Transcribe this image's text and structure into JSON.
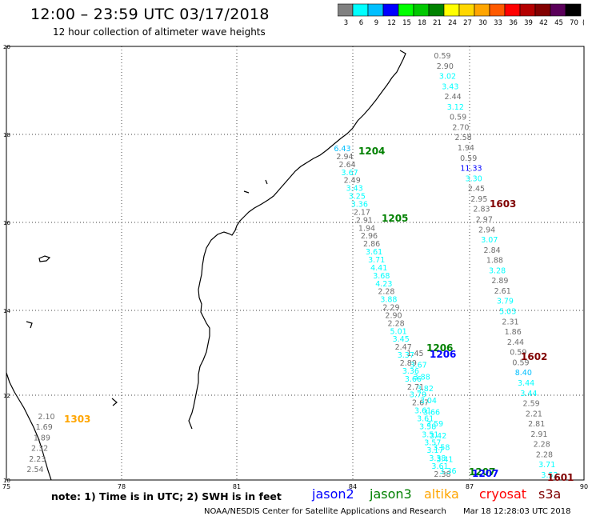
{
  "header": {
    "title": "12:00 – 23:59 UTC 03/17/2018",
    "subtitle": "12 hour collection of altimeter wave heights"
  },
  "color_scale": {
    "unit": "(ft)",
    "bins": [
      {
        "label": "3",
        "color": "#808080"
      },
      {
        "label": "6",
        "color": "#00ffff"
      },
      {
        "label": "9",
        "color": "#00bfff"
      },
      {
        "label": "12",
        "color": "#0000ff"
      },
      {
        "label": "15",
        "color": "#00ff00"
      },
      {
        "label": "18",
        "color": "#00c800"
      },
      {
        "label": "21",
        "color": "#008200"
      },
      {
        "label": "24",
        "color": "#ffff00"
      },
      {
        "label": "27",
        "color": "#ffd700"
      },
      {
        "label": "30",
        "color": "#ffa500"
      },
      {
        "label": "33",
        "color": "#ff5a00"
      },
      {
        "label": "36",
        "color": "#ff0000"
      },
      {
        "label": "39",
        "color": "#b40000"
      },
      {
        "label": "42",
        "color": "#820000"
      },
      {
        "label": "45",
        "color": "#5a005a"
      },
      {
        "label": "70",
        "color": "#000000"
      }
    ]
  },
  "map": {
    "lat_ticks": [
      "20",
      "18",
      "16",
      "14",
      "12",
      "10"
    ],
    "lon_ticks": [
      "75",
      "78",
      "81",
      "84",
      "87",
      "90"
    ],
    "pass_labels": [
      {
        "text": "1204",
        "color": "#008000"
      },
      {
        "text": "1205",
        "color": "#008000"
      },
      {
        "text": "1206",
        "color": "#008000"
      },
      {
        "text": "1206",
        "color": "#0000ff"
      },
      {
        "text": "1603",
        "color": "#800000"
      },
      {
        "text": "1602",
        "color": "#800000"
      },
      {
        "text": "1207",
        "color": "#008000"
      },
      {
        "text": "1207",
        "color": "#0000ff"
      },
      {
        "text": "1601",
        "color": "#800000"
      },
      {
        "text": "1303",
        "color": "#ffa500"
      }
    ],
    "tracks": [
      {
        "id": "s3a-east",
        "values": [
          "0.59",
          "2.90",
          "3.02",
          "3.43",
          "2.44",
          "3.12",
          "0.59",
          "2.70",
          "2.58",
          "1.94",
          "0.59",
          "11.33",
          "3.30",
          "2.45",
          "2.95",
          "2.83",
          "2.97",
          "2.94",
          "3.07",
          "2.84",
          "1.88",
          "3.28",
          "2.89",
          "2.61",
          "3.79",
          "5.03",
          "2.31",
          "1.86",
          "2.44",
          "0.59",
          "0.59",
          "8.40",
          "3.44",
          "3.44",
          "2.59",
          "2.21",
          "2.81",
          "2.91",
          "2.28",
          "2.28",
          "3.71",
          "3.52"
        ]
      },
      {
        "id": "jason-west",
        "values": [
          "6.43",
          "2.94",
          "2.64",
          "3.67",
          "2.49",
          "3.43",
          "3.25",
          "3.36",
          "2.17",
          "2.91",
          "1.94",
          "2.96",
          "2.86",
          "3.61",
          "3.71",
          "4.41",
          "3.68",
          "4.23",
          "2.28",
          "3.88",
          "2.29",
          "2.90",
          "2.28",
          "5.01",
          "3.45",
          "2.47",
          "3.37",
          "2.89",
          "3.36",
          "3.66",
          "2.71",
          "3.79",
          "2.67",
          "3.61",
          "3.61",
          "3.58",
          "3.51",
          "3.57",
          "3.17",
          "3.38",
          "3.61",
          "2.38"
        ]
      },
      {
        "id": "jason-inner",
        "values": [
          "1.45",
          "3.67",
          "3.88",
          "3.82",
          "3.04",
          "3.66",
          "3.59",
          "3.42",
          "3.58",
          "3.41",
          "3.36"
        ]
      },
      {
        "id": "altika",
        "values": [
          "2.10",
          "1.69",
          "1.89",
          "2.32",
          "2.23",
          "2.54"
        ]
      }
    ]
  },
  "footer": {
    "note": "note:  1) Time is in UTC;  2) SWH is in feet",
    "satellites": [
      {
        "name": "jason2",
        "color": "#0000ff"
      },
      {
        "name": "jason3",
        "color": "#008000"
      },
      {
        "name": "altika",
        "color": "#ffa500"
      },
      {
        "name": "cryosat",
        "color": "#ff0000"
      },
      {
        "name": "s3a",
        "color": "#800000"
      }
    ],
    "credit": "NOAA/NESDIS Center for Satellite Applications and Research",
    "timestamp": "Mar 18 12:28:03 UTC 2018"
  }
}
